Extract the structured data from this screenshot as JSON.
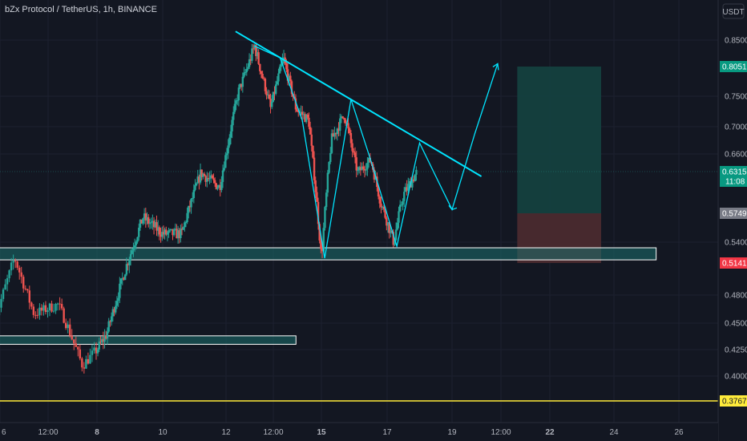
{
  "title": "bZx Protocol / TetherUS, 1h, BINANCE",
  "currency": "USDT",
  "colors": {
    "background": "#131722",
    "grid": "#1c2030",
    "axis_text": "#b2b5be",
    "candle_up": "#26a69a",
    "candle_down": "#ef5350",
    "trendline": "#00e5ff",
    "zone_fill": "#1b6f6e",
    "zone_border": "#ffffff",
    "support_line": "#ffeb3b",
    "target_box": "#14403f",
    "stop_box": "#4a2a2f",
    "badge_green": "#089981",
    "badge_red": "#f23645",
    "badge_yellow": "#ffeb3b",
    "badge_grey": "#787b86"
  },
  "price_axis": {
    "ticks": [
      "0.8500",
      "0.7500",
      "0.7000",
      "0.6600",
      "0.5400",
      "0.4800",
      "0.4500",
      "0.4250",
      "0.4000"
    ],
    "tick_values": [
      0.85,
      0.75,
      0.7,
      0.66,
      0.54,
      0.48,
      0.45,
      0.425,
      0.4
    ],
    "badges": [
      {
        "label": "0.8051",
        "value": 0.8051,
        "color": "green"
      },
      {
        "label": "0.6315",
        "value": 0.6315,
        "color": "green",
        "sub": "11:08"
      },
      {
        "label": "0.5749",
        "value": 0.5749,
        "color": "grey"
      },
      {
        "label": "0.5141",
        "value": 0.5141,
        "color": "red"
      },
      {
        "label": "0.3767",
        "value": 0.3767,
        "color": "yellow"
      }
    ]
  },
  "time_axis": {
    "labels": [
      "6",
      "12:00",
      "8",
      "10",
      "12",
      "12:00",
      "15",
      "17",
      "19",
      "12:00",
      "22",
      "24",
      "26"
    ],
    "bold": [
      false,
      false,
      true,
      false,
      false,
      false,
      true,
      false,
      false,
      false,
      true,
      false,
      false
    ]
  },
  "chart_data": {
    "type": "candlestick",
    "symbol": "bZx Protocol / TetherUS",
    "interval": "1h",
    "exchange": "BINANCE",
    "last_price": 0.6315,
    "countdown": "11:08",
    "approx_price_path": [
      {
        "day": 5.9,
        "price": 0.455
      },
      {
        "day": 6.3,
        "price": 0.52
      },
      {
        "day": 6.7,
        "price": 0.46
      },
      {
        "day": 7.2,
        "price": 0.47
      },
      {
        "day": 7.7,
        "price": 0.41
      },
      {
        "day": 8.3,
        "price": 0.44
      },
      {
        "day": 8.8,
        "price": 0.5
      },
      {
        "day": 9.4,
        "price": 0.57
      },
      {
        "day": 10.0,
        "price": 0.55
      },
      {
        "day": 10.6,
        "price": 0.55
      },
      {
        "day": 11.2,
        "price": 0.63
      },
      {
        "day": 11.8,
        "price": 0.61
      },
      {
        "day": 12.4,
        "price": 0.76
      },
      {
        "day": 12.9,
        "price": 0.84
      },
      {
        "day": 13.4,
        "price": 0.73
      },
      {
        "day": 13.8,
        "price": 0.82
      },
      {
        "day": 14.2,
        "price": 0.73
      },
      {
        "day": 14.6,
        "price": 0.71
      },
      {
        "day": 15.0,
        "price": 0.52
      },
      {
        "day": 15.3,
        "price": 0.68
      },
      {
        "day": 15.7,
        "price": 0.72
      },
      {
        "day": 16.1,
        "price": 0.63
      },
      {
        "day": 16.5,
        "price": 0.65
      },
      {
        "day": 16.8,
        "price": 0.59
      },
      {
        "day": 17.2,
        "price": 0.54
      },
      {
        "day": 17.5,
        "price": 0.6
      },
      {
        "day": 17.9,
        "price": 0.63
      }
    ],
    "annotations": {
      "descending_trendline": {
        "from": {
          "day": 12.3,
          "price": 0.865
        },
        "to": {
          "day": 19.9,
          "price": 0.625
        }
      },
      "support_zone_upper": {
        "from_day": 5.6,
        "to_day": 25.3,
        "price_top": 0.533,
        "price_bottom": 0.518
      },
      "support_zone_lower": {
        "from_day": 5.6,
        "to_day": 14.2,
        "price_top": 0.438,
        "price_bottom": 0.43
      },
      "support_line": {
        "price": 0.3767
      },
      "projected_path": [
        {
          "day": 12.9,
          "price": 0.84
        },
        {
          "day": 13.7,
          "price": 0.82
        },
        {
          "day": 14.4,
          "price": 0.71
        },
        {
          "day": 15.1,
          "price": 0.52
        },
        {
          "day": 15.9,
          "price": 0.745
        },
        {
          "day": 16.5,
          "price": 0.65
        },
        {
          "day": 17.3,
          "price": 0.535
        },
        {
          "day": 18.0,
          "price": 0.676
        },
        {
          "day": 18.5,
          "price": 0.625
        },
        {
          "day": 19.0,
          "price": 0.58
        },
        {
          "day": 19.7,
          "price": 0.69
        },
        {
          "day": 20.4,
          "price": 0.81
        }
      ],
      "long_position": {
        "from_day": 21.0,
        "to_day": 23.6,
        "entry": 0.5749,
        "target": 0.8051,
        "stop": 0.5141
      }
    }
  }
}
